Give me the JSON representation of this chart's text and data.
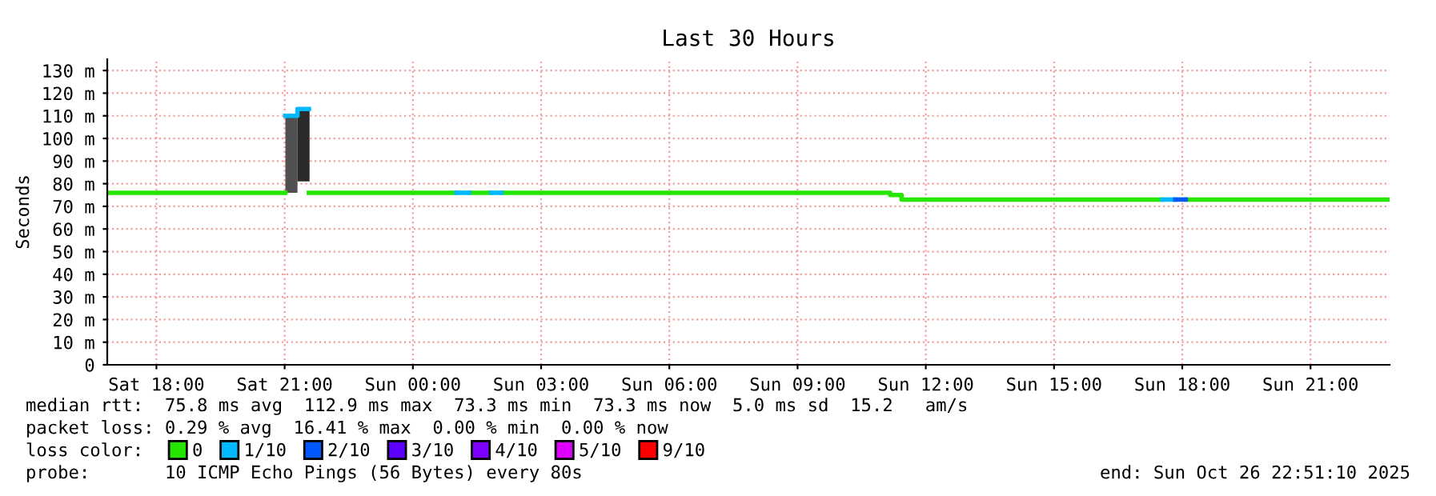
{
  "chart_data": {
    "type": "step",
    "title": "Last 30 Hours",
    "ylabel": "Seconds",
    "xlim": [
      "2025-10-25T16:51",
      "2025-10-26T22:51"
    ],
    "xticks": [
      {
        "value": "2025-10-25T18:00",
        "label": "Sat 18:00"
      },
      {
        "value": "2025-10-25T21:00",
        "label": "Sat 21:00"
      },
      {
        "value": "2025-10-26T00:00",
        "label": "Sun 00:00"
      },
      {
        "value": "2025-10-26T03:00",
        "label": "Sun 03:00"
      },
      {
        "value": "2025-10-26T06:00",
        "label": "Sun 06:00"
      },
      {
        "value": "2025-10-26T09:00",
        "label": "Sun 09:00"
      },
      {
        "value": "2025-10-26T12:00",
        "label": "Sun 12:00"
      },
      {
        "value": "2025-10-26T15:00",
        "label": "Sun 15:00"
      },
      {
        "value": "2025-10-26T18:00",
        "label": "Sun 18:00"
      },
      {
        "value": "2025-10-26T21:00",
        "label": "Sun 21:00"
      }
    ],
    "ylim": [
      0,
      135
    ],
    "yticks": [
      {
        "value": 0,
        "label": "0"
      },
      {
        "value": 10,
        "label": "10 m"
      },
      {
        "value": 20,
        "label": "20 m"
      },
      {
        "value": 30,
        "label": "30 m"
      },
      {
        "value": 40,
        "label": "40 m"
      },
      {
        "value": 50,
        "label": "50 m"
      },
      {
        "value": 60,
        "label": "60 m"
      },
      {
        "value": 70,
        "label": "70 m"
      },
      {
        "value": 80,
        "label": "80 m"
      },
      {
        "value": 90,
        "label": "90 m"
      },
      {
        "value": 100,
        "label": "100 m"
      },
      {
        "value": 110,
        "label": "110 m"
      },
      {
        "value": 120,
        "label": "120 m"
      },
      {
        "value": 130,
        "label": "130 m"
      }
    ],
    "grid": true,
    "legend": "bottom",
    "series": [
      {
        "type": "bar",
        "x": [
          "2025-10-25T21:01",
          "2025-10-25T21:18"
        ],
        "base": [
          76,
          81
        ],
        "values": [
          34,
          32
        ],
        "colors": [
          "#505050",
          "#2a2a2a"
        ]
      },
      {
        "name": "0",
        "color": "#26e600",
        "x": [
          "2025-10-25T16:51",
          "2025-10-25T21:01",
          "2025-10-25T21:34",
          "2025-10-26T01:01",
          "2025-10-26T01:19",
          "2025-10-26T01:50",
          "2025-10-26T02:04",
          "2025-10-26T11:10",
          "2025-10-26T11:26",
          "2025-10-26T17:32",
          "2025-10-26T18:05",
          "2025-10-26T22:51"
        ],
        "values": [
          76,
          null,
          76,
          null,
          76,
          null,
          76,
          75,
          73,
          null,
          73,
          73
        ]
      },
      {
        "name": "1/10",
        "color": "#00b8ff",
        "type": "line",
        "x": [
          "2025-10-25T21:01",
          "2025-10-25T21:18",
          "2025-10-25T21:18",
          "2025-10-25T21:34"
        ],
        "values": [
          110,
          110,
          113,
          113
        ]
      },
      {
        "color": "#00b8ff",
        "type": "line",
        "x": [
          "2025-10-26T01:01",
          "2025-10-26T01:19"
        ],
        "values": [
          76,
          76
        ]
      },
      {
        "color": "#00b8ff",
        "type": "line",
        "x": [
          "2025-10-26T01:50",
          "2025-10-26T02:04"
        ],
        "values": [
          76,
          76
        ]
      },
      {
        "color": "#00b8ff",
        "type": "line",
        "x": [
          "2025-10-26T17:32",
          "2025-10-26T17:50"
        ],
        "values": [
          73,
          73
        ]
      },
      {
        "name": "2/10",
        "color": "#0059ff",
        "type": "line",
        "x": [
          "2025-10-26T17:50",
          "2025-10-26T18:05"
        ],
        "values": [
          73,
          73
        ]
      },
      {
        "name": "3/10",
        "color": "#5e00ff"
      },
      {
        "name": "4/10",
        "color": "#7e00ff"
      },
      {
        "name": "5/10",
        "color": "#dd00ff"
      },
      {
        "name": "9/10",
        "color": "#ff0000"
      }
    ],
    "annotations": [
      "median rtt:  75.8 ms avg  112.9 ms max  73.3 ms min  73.3 ms now  5.0 ms sd  15.2   am/s",
      "packet loss: 0.29 % avg  16.41 % max  0.00 % min  0.00 % now",
      "loss color:",
      "probe:       10 ICMP Echo Pings (56 Bytes) every 80s",
      "end: Sun Oct 26 22:51:10 2025"
    ]
  }
}
